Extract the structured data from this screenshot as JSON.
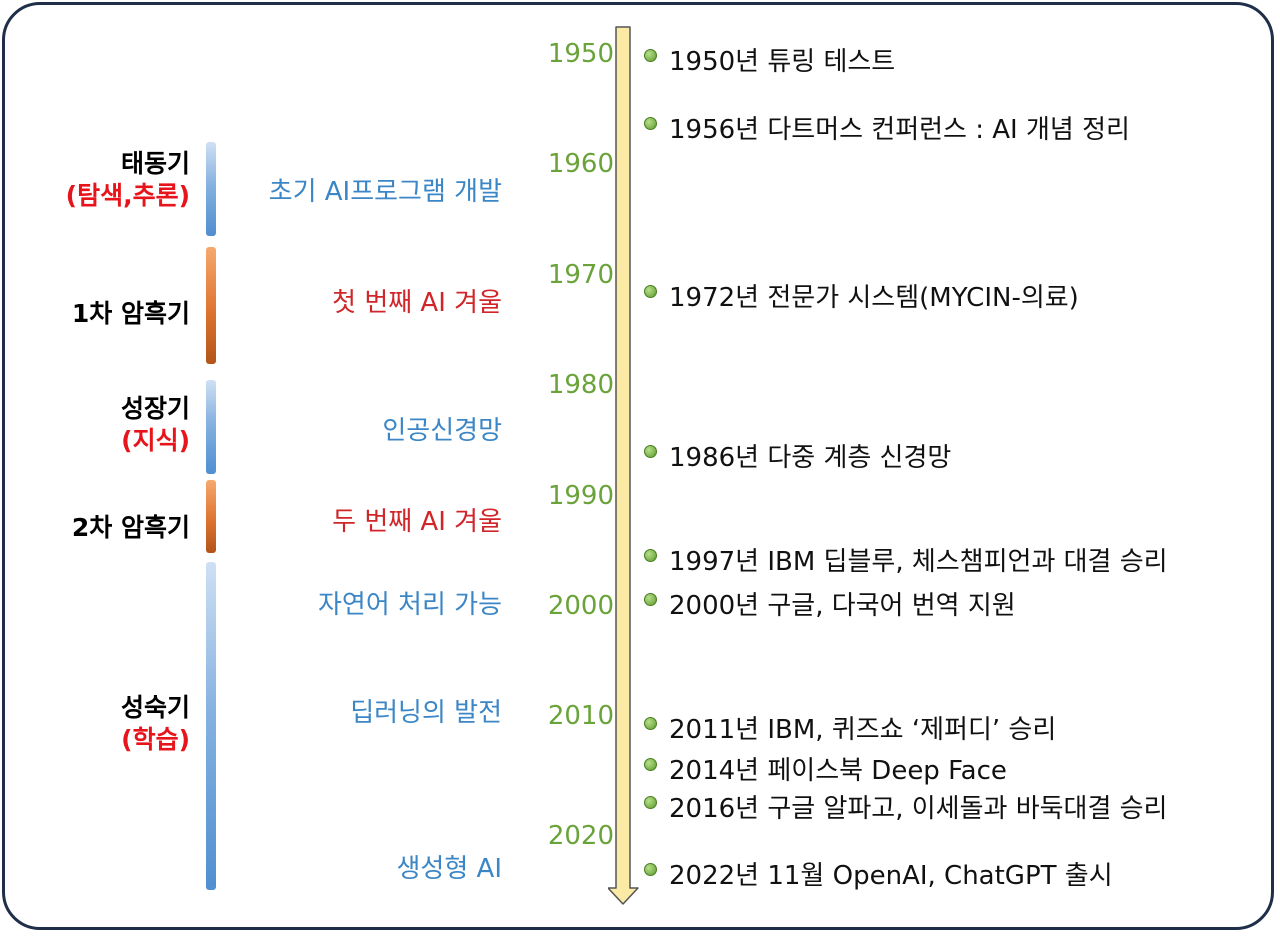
{
  "eras": [
    {
      "name": "태동기",
      "sub": "(탐색,추론)",
      "desc": "초기 AI프로그램 개발",
      "tone": "blue"
    },
    {
      "name": "1차 암흑기",
      "sub": "",
      "desc": "첫 번째 AI 겨울",
      "tone": "red"
    },
    {
      "name": "성장기",
      "sub": "(지식)",
      "desc": "인공신경망",
      "tone": "blue"
    },
    {
      "name": "2차 암흑기",
      "sub": "",
      "desc": "두 번째 AI 겨울",
      "tone": "red"
    },
    {
      "name": "성숙기",
      "sub": "(학습)",
      "desc": "자연어 처리 가능",
      "tone": "blue"
    }
  ],
  "maturity_extra_descs": [
    "딥러닝의 발전",
    "생성형 AI"
  ],
  "decades": [
    "1950",
    "1960",
    "1970",
    "1980",
    "1990",
    "2000",
    "2010",
    "2020"
  ],
  "events": [
    "1950년 튜링 테스트",
    "1956년 다트머스 컨퍼런스 : AI 개념 정리",
    "1972년 전문가 시스템(MYCIN-의료)",
    "1986년 다중 계층 신경망",
    "1997년 IBM 딥블루, 체스챔피언과 대결 승리",
    "2000년 구글, 다국어 번역 지원",
    "2011년 IBM, 퀴즈쇼 ‘제퍼디’ 승리",
    "2014년 페이스북 Deep Face",
    "2016년 구글 알파고, 이세돌과 바둑대결 승리",
    "2022년 11월 OpenAI, ChatGPT 출시"
  ],
  "colors": {
    "frame": "#1f2f4a",
    "year_green": "#6aa33a",
    "era_sub_red": "#e8141c",
    "desc_blue": "#3b86c6",
    "desc_red": "#d0262a",
    "arrow_fill": "#fbe9a6",
    "dot_green": "#5d9a2c"
  }
}
